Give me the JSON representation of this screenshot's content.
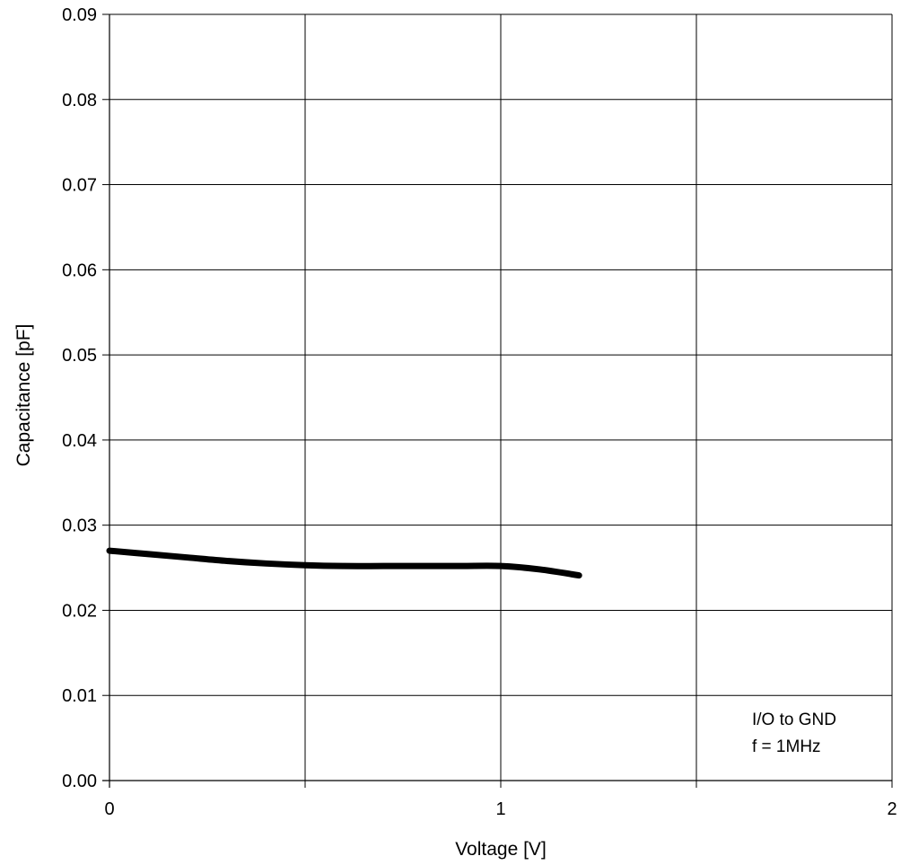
{
  "chart_data": {
    "type": "line",
    "xlabel": "Voltage [V]",
    "ylabel": "Capacitance [pF]",
    "xlim": [
      0,
      2
    ],
    "ylim": [
      0,
      0.09
    ],
    "x_ticks": [
      0,
      0.5,
      1,
      1.5,
      2
    ],
    "x_tick_labels": [
      "0",
      "",
      "1",
      "",
      "2"
    ],
    "y_ticks": [
      0,
      0.01,
      0.02,
      0.03,
      0.04,
      0.05,
      0.06,
      0.07,
      0.08,
      0.09
    ],
    "y_tick_labels": [
      "0.00",
      "0.01",
      "0.02",
      "0.03",
      "0.04",
      "0.05",
      "0.06",
      "0.07",
      "0.08",
      "0.09"
    ],
    "grid": true,
    "annotations": [
      "I/O to GND",
      "f = 1MHz"
    ],
    "series": [
      {
        "color": "#000000",
        "x": [
          0,
          0.1,
          0.2,
          0.3,
          0.4,
          0.5,
          0.6,
          0.7,
          0.8,
          0.9,
          1.0,
          1.1,
          1.2
        ],
        "y": [
          0.027,
          0.0266,
          0.0262,
          0.0258,
          0.0255,
          0.0253,
          0.0252,
          0.0252,
          0.0252,
          0.0252,
          0.0252,
          0.0248,
          0.0241
        ]
      }
    ]
  }
}
